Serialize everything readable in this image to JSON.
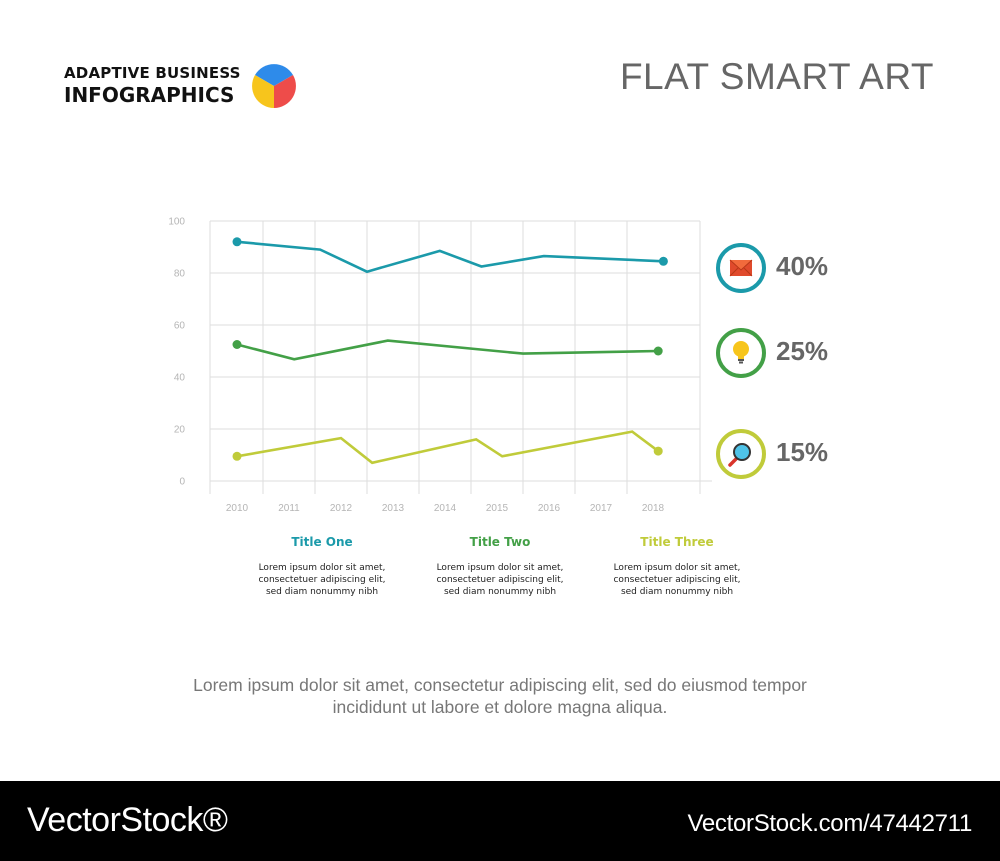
{
  "header": {
    "logo_line1": "ADAPTIVE BUSINESS",
    "logo_line2": "INFOGRAPHICS",
    "headline": "FLAT SMART ART"
  },
  "colors": {
    "teal": "#1b9aaa",
    "green": "#43a047",
    "lime": "#c0cb3a",
    "grid": "#dddddd",
    "pie_blue": "#2e8bea",
    "pie_red": "#ee4c4a",
    "pie_yellow": "#f7c51c"
  },
  "chart_data": {
    "type": "line",
    "x": [
      "2010",
      "2011",
      "2012",
      "2013",
      "2014",
      "2015",
      "2016",
      "2017",
      "2018"
    ],
    "yticks": [
      0,
      20,
      40,
      60,
      80,
      100
    ],
    "ylim": [
      0,
      100
    ],
    "grid": true,
    "series": [
      {
        "color": "#1b9aaa",
        "points": [
          [
            2010,
            92
          ],
          [
            2011.6,
            89
          ],
          [
            2012.5,
            80.5
          ],
          [
            2013.9,
            88.5
          ],
          [
            2014.7,
            82.5
          ],
          [
            2015.9,
            86.5
          ],
          [
            2018.2,
            84.5
          ]
        ]
      },
      {
        "color": "#43a047",
        "points": [
          [
            2010,
            52.5
          ],
          [
            2011.1,
            46.8
          ],
          [
            2012.9,
            54
          ],
          [
            2015.5,
            49
          ],
          [
            2018.1,
            50
          ]
        ]
      },
      {
        "color": "#c0cb3a",
        "points": [
          [
            2010,
            9.5
          ],
          [
            2012,
            16.5
          ],
          [
            2012.6,
            7
          ],
          [
            2014.6,
            16
          ],
          [
            2015.1,
            9.5
          ],
          [
            2017.6,
            19
          ],
          [
            2018.1,
            11.5
          ]
        ]
      }
    ]
  },
  "legend": [
    {
      "value": "40%",
      "icon": "envelope-icon",
      "color": "#1b9aaa"
    },
    {
      "value": "25%",
      "icon": "lightbulb-icon",
      "color": "#43a047"
    },
    {
      "value": "15%",
      "icon": "magnifier-icon",
      "color": "#c0cb3a"
    }
  ],
  "columns": [
    {
      "title": "Title One",
      "color": "#1b9aaa",
      "lines": [
        "Lorem ipsum dolor sit amet,",
        "consectetuer adipiscing elit,",
        "sed diam nonummy nibh"
      ]
    },
    {
      "title": "Title Two",
      "color": "#43a047",
      "lines": [
        "Lorem ipsum dolor sit amet,",
        "consectetuer adipiscing elit,",
        "sed diam nonummy nibh"
      ]
    },
    {
      "title": "Title Three",
      "color": "#c0cb3a",
      "lines": [
        "Lorem ipsum dolor sit amet,",
        "consectetuer adipiscing elit,",
        "sed diam nonummy nibh"
      ]
    }
  ],
  "caption": {
    "line1": "Lorem ipsum dolor sit amet, consectetur adipiscing elit, sed do eiusmod tempor",
    "line2": "incididunt ut labore et dolore magna aliqua."
  },
  "footer": {
    "brand": "VectorStock®",
    "url": "VectorStock.com/47442711"
  }
}
